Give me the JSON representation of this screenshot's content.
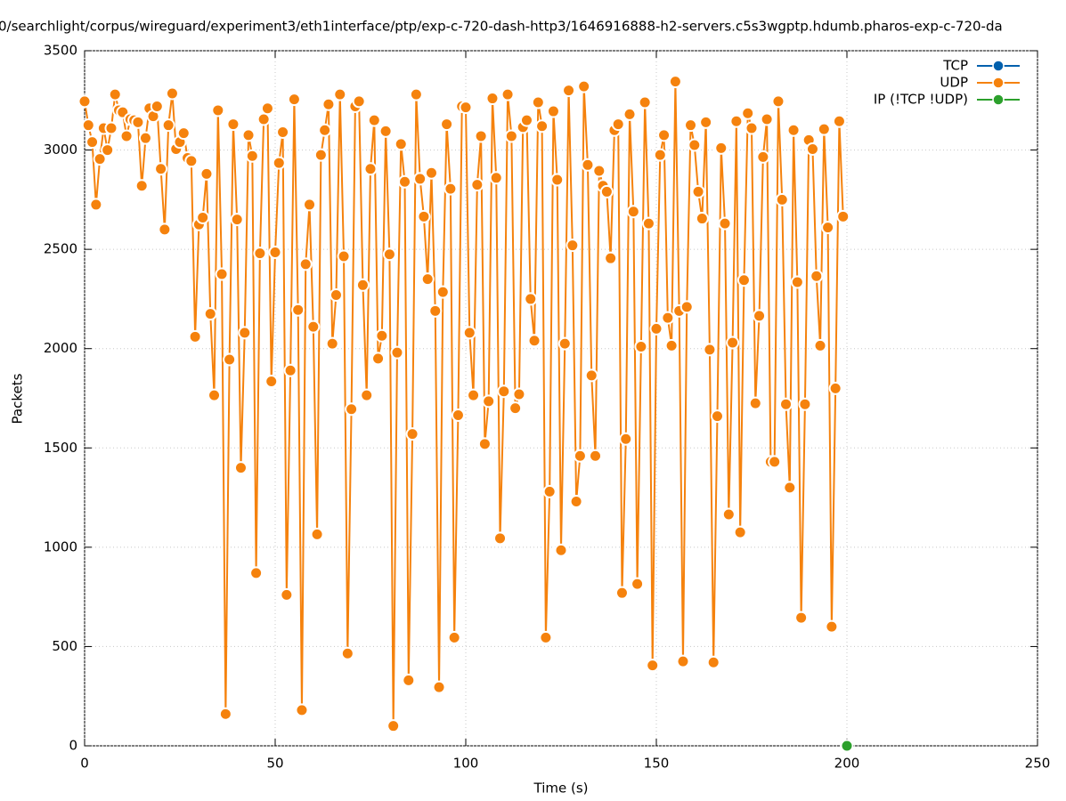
{
  "chart_data": {
    "type": "line",
    "title": "0/searchlight/corpus/wireguard/experiment3/eth1interface/ptp/exp-c-720-dash-http3/1646916888-h2-servers.c5s3wgptp.hdumb.pharos-exp-c-720-da",
    "xlabel": "Time (s)",
    "ylabel": "Packets",
    "xlim": [
      0,
      250
    ],
    "xticks": [
      0,
      50,
      100,
      150,
      200,
      250
    ],
    "ylim": [
      0,
      3500
    ],
    "yticks": [
      0,
      500,
      1000,
      1500,
      2000,
      2500,
      3000,
      3500
    ],
    "grid": true,
    "legend": "top-right",
    "series": [
      {
        "name": "TCP",
        "color": "#0060ad",
        "x": [],
        "values": []
      },
      {
        "name": "UDP",
        "color": "#f5820d",
        "x": [
          0,
          1,
          2,
          3,
          4,
          5,
          6,
          7,
          8,
          9,
          10,
          11,
          12,
          13,
          14,
          15,
          16,
          17,
          18,
          19,
          20,
          21,
          22,
          23,
          24,
          25,
          26,
          27,
          28,
          29,
          30,
          31,
          32,
          33,
          34,
          35,
          36,
          37,
          38,
          39,
          40,
          41,
          42,
          43,
          44,
          45,
          46,
          47,
          48,
          49,
          50,
          51,
          52,
          53,
          54,
          55,
          56,
          57,
          58,
          59,
          60,
          61,
          62,
          63,
          64,
          65,
          66,
          67,
          68,
          69,
          70,
          71,
          72,
          73,
          74,
          75,
          76,
          77,
          78,
          79,
          80,
          81,
          82,
          83,
          84,
          85,
          86,
          87,
          88,
          89,
          90,
          91,
          92,
          93,
          94,
          95,
          96,
          97,
          98,
          99,
          100,
          101,
          102,
          103,
          104,
          105,
          106,
          107,
          108,
          109,
          110,
          111,
          112,
          113,
          114,
          115,
          116,
          117,
          118,
          119,
          120,
          121,
          122,
          123,
          124,
          125,
          126,
          127,
          128,
          129,
          130,
          131,
          132,
          133,
          134,
          135,
          136,
          137,
          138,
          139,
          140,
          141,
          142,
          143,
          144,
          145,
          146,
          147,
          148,
          149,
          150,
          151,
          152,
          153,
          154,
          155,
          156,
          157,
          158,
          159,
          160,
          161,
          162,
          163,
          164,
          165,
          166,
          167,
          168,
          169,
          170,
          171,
          172,
          173,
          174,
          175,
          176,
          177,
          178,
          179,
          180,
          181,
          182,
          183,
          184,
          185,
          186,
          187,
          188,
          189,
          190,
          191,
          192,
          193,
          194,
          195,
          196,
          197,
          198,
          199
        ],
        "values": [
          3245,
          3125,
          3040,
          2725,
          2955,
          3110,
          3000,
          3110,
          3280,
          3200,
          3190,
          3070,
          3155,
          3150,
          3140,
          2820,
          3060,
          3210,
          3170,
          3220,
          2905,
          2600,
          3125,
          3285,
          3005,
          3040,
          3085,
          2960,
          2945,
          2060,
          2625,
          2660,
          2880,
          2175,
          1765,
          3200,
          2375,
          160,
          1945,
          3130,
          2650,
          1400,
          2080,
          3075,
          2970,
          870,
          2480,
          3155,
          3210,
          1835,
          2485,
          2935,
          3090,
          760,
          1890,
          3255,
          2195,
          180,
          2425,
          2725,
          2110,
          1065,
          2975,
          3100,
          3230,
          2025,
          2270,
          3280,
          2465,
          465,
          1695,
          3220,
          3245,
          2320,
          1765,
          2905,
          3150,
          1950,
          2065,
          3095,
          2475,
          100,
          1980,
          3030,
          2840,
          330,
          1570,
          3280,
          2855,
          2665,
          2350,
          2885,
          2190,
          295,
          2285,
          3130,
          2805,
          545,
          1665,
          3220,
          3215,
          2080,
          1765,
          2825,
          3070,
          1520,
          1735,
          3260,
          2860,
          1045,
          1785,
          3280,
          3070,
          1700,
          1770,
          3115,
          3150,
          2250,
          2040,
          3240,
          3120,
          545,
          1280,
          3195,
          2850,
          985,
          2025,
          3300,
          2520,
          1230,
          1460,
          3320,
          2925,
          1865,
          1460,
          2895,
          2820,
          2790,
          2455,
          3100,
          3130,
          770,
          1545,
          3180,
          2690,
          815,
          2010,
          3240,
          2630,
          405,
          2100,
          2975,
          3075,
          2155,
          2015,
          3345,
          2190,
          425,
          2210,
          3125,
          3025,
          2790,
          2655,
          3140,
          1995,
          420,
          1660,
          3010,
          2630,
          1165,
          2030,
          3145,
          1075,
          2345,
          3185,
          3110,
          1725,
          2165,
          2965,
          3155,
          1430,
          1430,
          3245,
          2750,
          1720,
          1300,
          3100,
          2335,
          645,
          1720,
          3050,
          3005,
          2365,
          2015,
          3105,
          2610,
          600,
          1800,
          3145,
          2665
        ]
      },
      {
        "name": "IP (!TCP  !UDP)",
        "color": "#2ca02c",
        "x": [
          200
        ],
        "values": [
          0
        ]
      }
    ]
  }
}
